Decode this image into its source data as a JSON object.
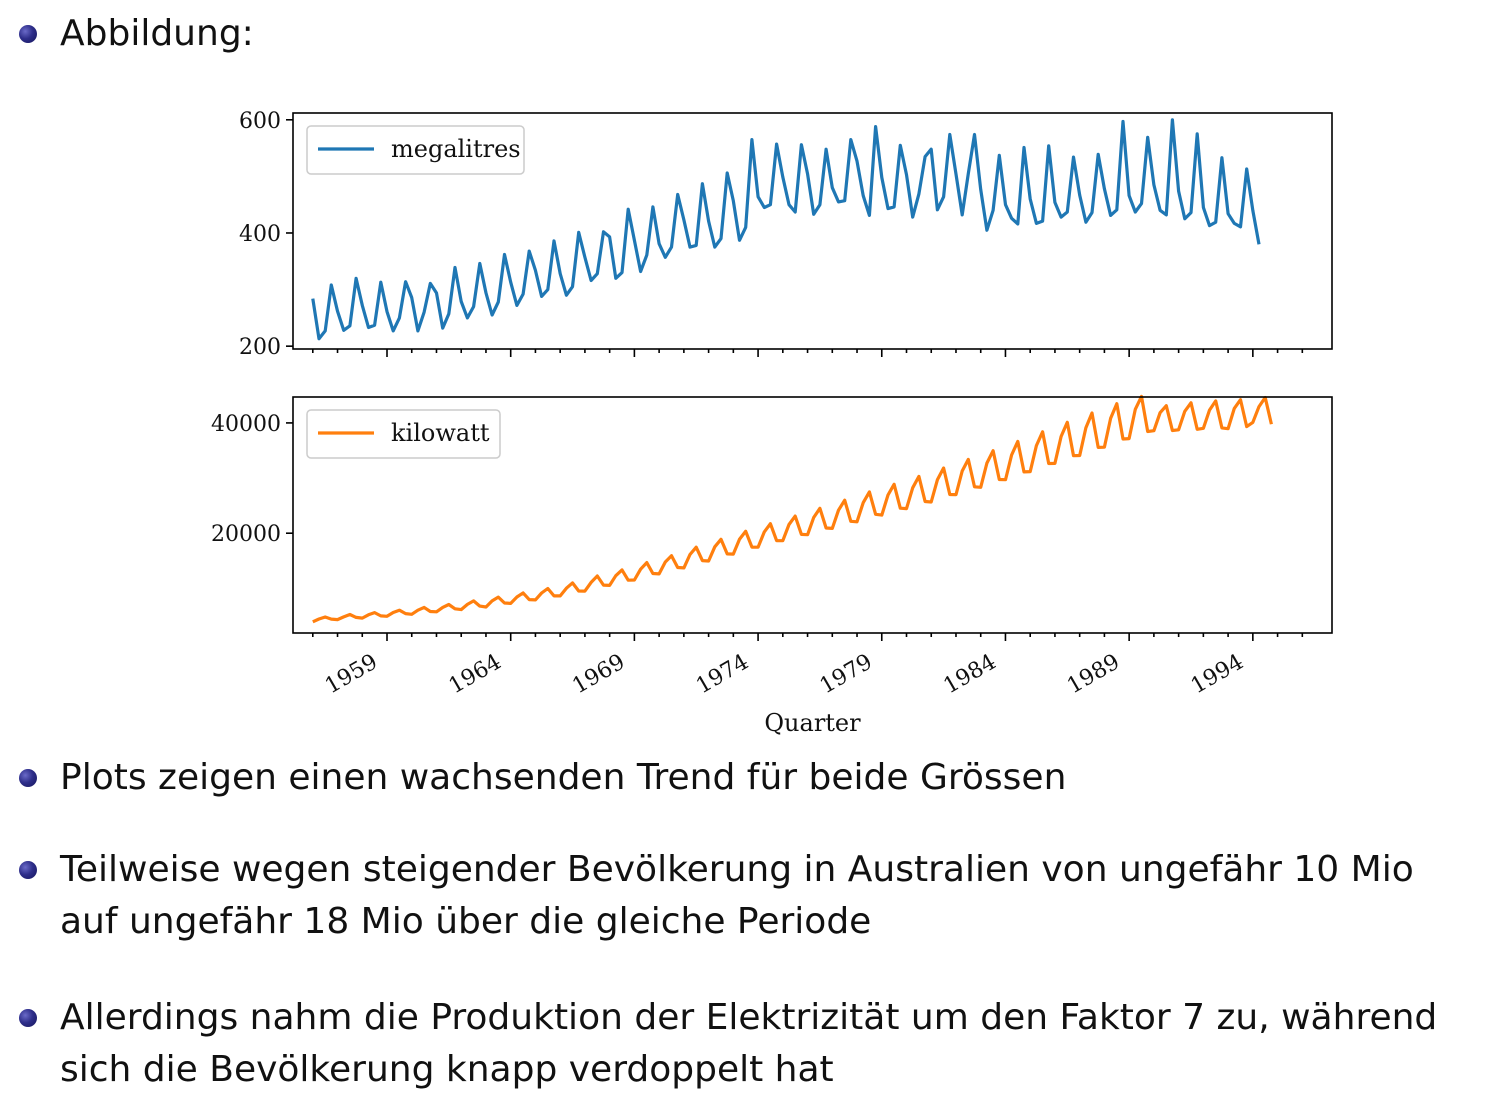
{
  "slide": {
    "heading": "Abbildung:",
    "bullets": [
      {
        "lines": [
          "Plots zeigen einen wachsenden Trend für beide Grössen"
        ]
      },
      {
        "lines": [
          "Teilweise wegen steigender Bevölkerung in Australien von ungefähr 10 Mio",
          "auf ungefähr 18 Mio über die gleiche Periode"
        ]
      },
      {
        "lines": [
          "Allerdings nahm die Produktion der Elektrizität um den Faktor 7 zu, während",
          "sich die Bevölkerung knapp verdoppelt hat"
        ]
      }
    ]
  },
  "chart_data": [
    {
      "type": "line",
      "legend_location": "top-left",
      "series": [
        {
          "name": "megalitres",
          "color": "#1f77b4",
          "x_start": 1956.0,
          "x_step": 0.25,
          "values": [
            284,
            213,
            227,
            308,
            262,
            228,
            236,
            320,
            272,
            233,
            237,
            313,
            261,
            227,
            250,
            314,
            286,
            227,
            260,
            311,
            294,
            232,
            257,
            339,
            279,
            250,
            270,
            346,
            294,
            255,
            278,
            362,
            313,
            272,
            292,
            368,
            334,
            288,
            300,
            386,
            328,
            290,
            305,
            401,
            357,
            316,
            328,
            402,
            393,
            320,
            330,
            442,
            387,
            332,
            361,
            446,
            381,
            357,
            375,
            468,
            423,
            375,
            378,
            487,
            421,
            375,
            390,
            506,
            457,
            387,
            410,
            565,
            464,
            445,
            450,
            557,
            499,
            450,
            437,
            556,
            504,
            433,
            450,
            548,
            480,
            455,
            457,
            565,
            527,
            466,
            431,
            588,
            498,
            443,
            446,
            555,
            503,
            428,
            469,
            535,
            548,
            441,
            464,
            574,
            504,
            432,
            505,
            574,
            477,
            405,
            440,
            537,
            450,
            426,
            416,
            551,
            460,
            417,
            421,
            554,
            454,
            428,
            437,
            534,
            467,
            419,
            436,
            539,
            478,
            431,
            441,
            597,
            466,
            437,
            452,
            569,
            485,
            440,
            432,
            600,
            474,
            425,
            436,
            575,
            445,
            413,
            419,
            533,
            434,
            417,
            411,
            513,
            440,
            380
          ]
        }
      ],
      "ylim": [
        195,
        612
      ],
      "yticks": [
        200,
        400,
        600
      ]
    },
    {
      "type": "line",
      "legend_location": "top-left",
      "series": [
        {
          "name": "kilowatt",
          "color": "#ff7f0e",
          "x_start": 1956.0,
          "x_step": 0.25,
          "values": [
            3923,
            4436,
            4806,
            4418,
            4339,
            4811,
            5259,
            4735,
            4608,
            5196,
            5600,
            5008,
            4937,
            5611,
            6032,
            5419,
            5295,
            6034,
            6544,
            5793,
            5740,
            6540,
            7061,
            6292,
            6152,
            7081,
            7716,
            6777,
            6622,
            7716,
            8411,
            7344,
            7263,
            8421,
            9165,
            7963,
            7895,
            9162,
            9968,
            8623,
            8633,
            10020,
            10986,
            9518,
            9507,
            11077,
            12240,
            10596,
            10538,
            12289,
            13342,
            11478,
            11511,
            13464,
            14659,
            12690,
            12614,
            14774,
            15923,
            13779,
            13711,
            16138,
            17457,
            15031,
            14955,
            17528,
            18894,
            16252,
            16203,
            18905,
            20339,
            17475,
            17458,
            20242,
            21717,
            18659,
            18637,
            21577,
            23094,
            19776,
            19731,
            22840,
            24514,
            20938,
            20869,
            24172,
            25981,
            22161,
            22066,
            25537,
            27491,
            23419,
            23277,
            26932,
            28861,
            24540,
            24461,
            28230,
            30304,
            25748,
            25657,
            29679,
            31816,
            27024,
            26996,
            31280,
            33384,
            28415,
            28316,
            32713,
            34962,
            29732,
            29710,
            34189,
            36640,
            31117,
            31163,
            35891,
            38389,
            32641,
            32664,
            37536,
            40107,
            34048,
            34097,
            39130,
            41805,
            35555,
            35593,
            40815,
            43480,
            37086,
            37155,
            42473,
            44811,
            38450,
            38589,
            41850,
            43123,
            38620,
            38758,
            42101,
            43640,
            38840,
            39020,
            42321,
            43988,
            39100,
            38955,
            42640,
            44212,
            39340,
            40100,
            42960,
            44612,
            39760
          ]
        }
      ],
      "ylim": [
        1900,
        44700
      ],
      "yticks": [
        20000,
        40000
      ],
      "xlabel": "Quarter",
      "xticks": [
        1959,
        1964,
        1969,
        1974,
        1979,
        1984,
        1989,
        1994
      ],
      "xlim": [
        1955.2,
        1997.2
      ]
    }
  ]
}
